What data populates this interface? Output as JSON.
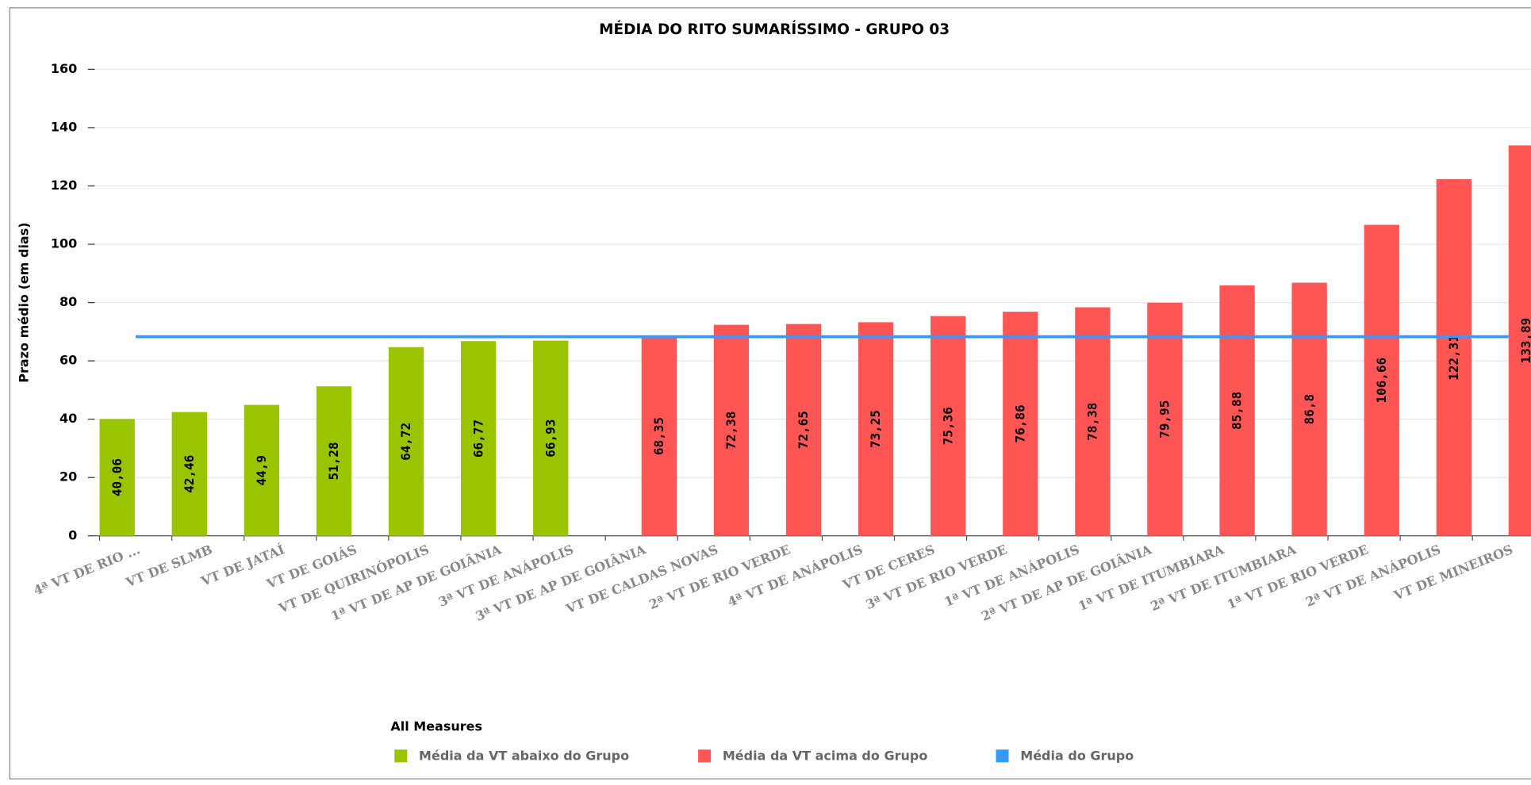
{
  "chart_data": {
    "type": "bar",
    "title": "MÉDIA DO RITO SUMARÍSSIMO - GRUPO 03",
    "y_label": "Prazo médio (em dias)",
    "legend_title": "All Measures",
    "categories": [
      "4ª VT DE RIO ...",
      "VT DE SLMB",
      "VT DE JATAÍ",
      "VT DE GOIÁS",
      "VT DE QUIRINÓPOLIS",
      "1ª VT DE AP DE GOIÂNIA",
      "3ª VT DE ANÁPOLIS",
      "3ª VT DE AP DE GOIÂNIA",
      "VT DE CALDAS NOVAS",
      "2ª VT DE RIO VERDE",
      "4ª VT DE ANÁPOLIS",
      "VT DE CERES",
      "3ª VT DE RIO VERDE",
      "1ª VT DE ANÁPOLIS",
      "2ª VT DE AP DE GOIÂNIA",
      "1ª VT DE ITUMBIARA",
      "2ª VT DE ITUMBIARA",
      "1ª VT DE RIO VERDE",
      "2ª VT DE ANÁPOLIS",
      "VT DE MINEIROS"
    ],
    "series": [
      {
        "name": "Média da VT abaixo do Grupo",
        "color": "#99c400",
        "values": [
          40.06,
          42.46,
          44.9,
          51.28,
          64.72,
          66.77,
          66.93,
          null,
          null,
          null,
          null,
          null,
          null,
          null,
          null,
          null,
          null,
          null,
          null,
          null
        ],
        "value_labels": [
          "40,06",
          "42,46",
          "44,9",
          "51,28",
          "64,72",
          "66,77",
          "66,93",
          null,
          null,
          null,
          null,
          null,
          null,
          null,
          null,
          null,
          null,
          null,
          null,
          null
        ]
      },
      {
        "name": "Média da VT acima do Grupo",
        "color": "#ff5555",
        "values": [
          null,
          null,
          null,
          null,
          null,
          null,
          null,
          68.35,
          72.38,
          72.65,
          73.25,
          75.36,
          76.86,
          78.38,
          79.95,
          85.88,
          86.8,
          106.66,
          122.31,
          133.89
        ],
        "value_labels": [
          null,
          null,
          null,
          null,
          null,
          null,
          null,
          "68,35",
          "72,38",
          "72,65",
          "73,25",
          "75,36",
          "76,86",
          "78,38",
          "79,95",
          "85,88",
          "86,8",
          "106,66",
          "122,31",
          "133,89"
        ]
      },
      {
        "name": "Média do Grupo",
        "color": "#3399ff",
        "type": "line",
        "values": [
          68.3,
          68.3,
          68.3,
          68.3,
          68.3,
          68.3,
          68.3,
          68.3,
          68.3,
          68.3,
          68.3,
          68.3,
          68.3,
          68.3,
          68.3,
          68.3,
          68.3,
          68.3,
          68.3,
          68.3
        ]
      }
    ],
    "ylim": [
      0,
      160
    ],
    "yticks": [
      0,
      20,
      40,
      60,
      80,
      100,
      120,
      140,
      160
    ],
    "grid": true
  }
}
